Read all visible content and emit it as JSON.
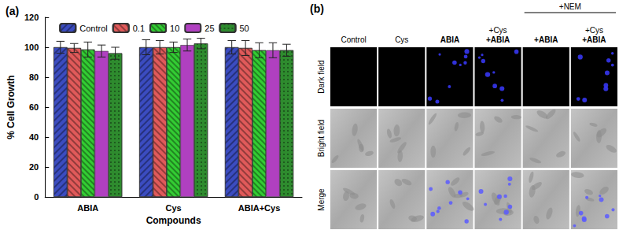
{
  "chart_data": {
    "type": "bar",
    "title": "(a)",
    "x_label": "Compounds",
    "y_label": "% Cell Growth",
    "categories": [
      "ABIA",
      "Cys",
      "ABIA+Cys"
    ],
    "series": [
      {
        "name": "Control",
        "color": "#3b4cc0",
        "values": [
          100,
          100,
          100
        ],
        "errors": [
          4,
          5,
          4.5
        ]
      },
      {
        "name": "0.1",
        "color": "#e05a5a",
        "values": [
          99.5,
          100,
          99.5
        ],
        "errors": [
          3,
          4.5,
          5
        ]
      },
      {
        "name": "10",
        "color": "#33cc33",
        "values": [
          98.5,
          100,
          98
        ],
        "errors": [
          5,
          3.5,
          5
        ]
      },
      {
        "name": "25",
        "color": "#b040c0",
        "values": [
          97.5,
          101.5,
          98
        ],
        "errors": [
          4,
          4,
          5
        ]
      },
      {
        "name": "50",
        "color": "#2e8b2e",
        "values": [
          96,
          102.5,
          98
        ],
        "errors": [
          4,
          3.5,
          4
        ]
      }
    ],
    "ylim": [
      0,
      120
    ],
    "yticks": [
      0,
      20,
      40,
      60,
      80,
      100,
      120
    ],
    "grid": false,
    "legend": "top"
  },
  "panel_b": {
    "label": "(b)",
    "columns": [
      [
        "Control"
      ],
      [
        "Cys"
      ],
      [
        "ABIA"
      ],
      [
        "+Cys",
        "+ABIA"
      ],
      [
        "+ABIA"
      ],
      [
        "+Cys",
        "+ABIA"
      ]
    ],
    "group": {
      "label": "+NEM",
      "columns": [
        4,
        5
      ]
    },
    "rows": [
      "Dark field",
      "Bright field",
      "Merge"
    ],
    "fluorescent": [
      false,
      false,
      true,
      true,
      false,
      true
    ]
  }
}
